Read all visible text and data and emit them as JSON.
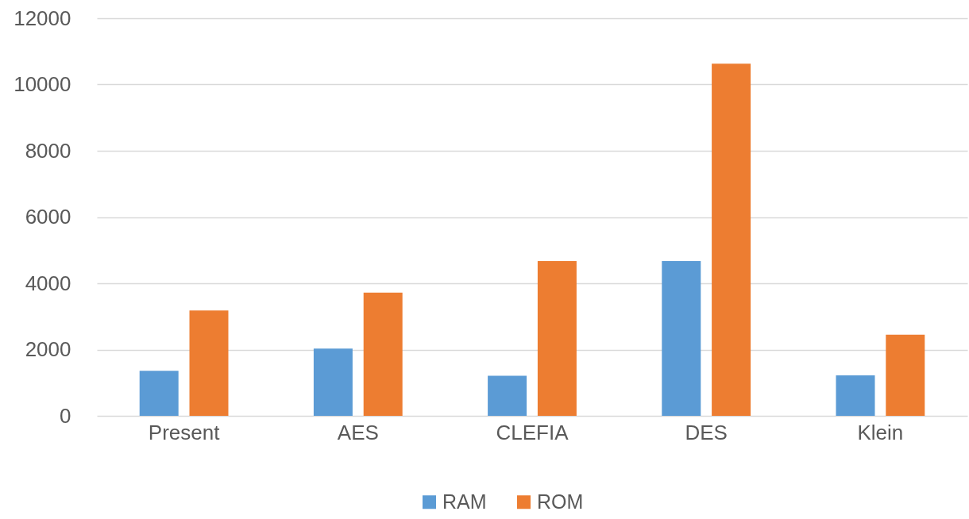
{
  "chart_data": {
    "type": "bar",
    "categories": [
      "Present",
      "AES",
      "CLEFIA",
      "DES",
      "Klein"
    ],
    "series": [
      {
        "name": "RAM",
        "color": "#5b9bd5",
        "values": [
          1360,
          2030,
          1210,
          4670,
          1220
        ]
      },
      {
        "name": "ROM",
        "color": "#ed7d31",
        "values": [
          3180,
          3720,
          4670,
          10630,
          2450
        ]
      }
    ],
    "ylim": [
      0,
      12000
    ],
    "yticks": [
      0,
      2000,
      4000,
      6000,
      8000,
      10000,
      12000
    ],
    "grid": "y",
    "legend": "bottom"
  }
}
